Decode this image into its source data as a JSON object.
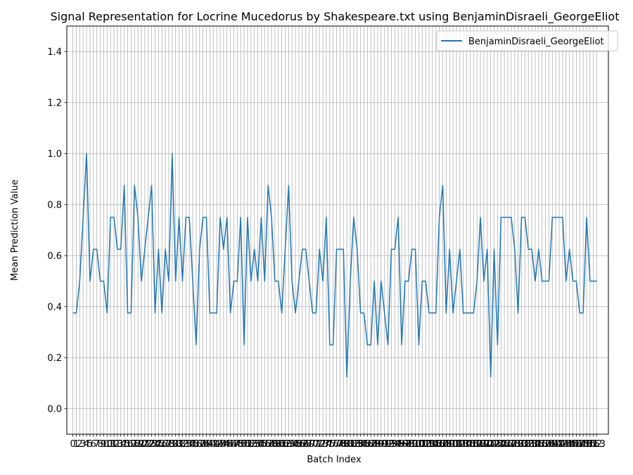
{
  "chart_data": {
    "type": "line",
    "title": "Signal Representation for Locrine Mucedorus by Shakespeare.txt using BenjaminDisraeli_GeorgeEliot",
    "xlabel": "Batch Index",
    "ylabel": "Mean Prediction Value",
    "ylim": [
      -0.1,
      1.5
    ],
    "yticks": [
      "0.0",
      "0.2",
      "0.4",
      "0.6",
      "0.8",
      "1.0",
      "1.2",
      "1.4"
    ],
    "grid": true,
    "legend_position": "top-right",
    "colors": {
      "series": "#1f77b4",
      "grid": "#b0b0b0"
    },
    "x": [
      0,
      1,
      2,
      3,
      4,
      5,
      6,
      7,
      8,
      9,
      10,
      11,
      12,
      13,
      14,
      15,
      16,
      17,
      18,
      19,
      20,
      21,
      22,
      23,
      24,
      25,
      26,
      27,
      28,
      29,
      30,
      31,
      32,
      33,
      34,
      35,
      36,
      37,
      38,
      39,
      40,
      41,
      42,
      43,
      44,
      45,
      46,
      47,
      48,
      49,
      50,
      51,
      52,
      53,
      54,
      55,
      56,
      57,
      58,
      59,
      60,
      61,
      62,
      63,
      64,
      65,
      66,
      67,
      68,
      69,
      70,
      71,
      72,
      73,
      74,
      75,
      76,
      77,
      78,
      79,
      80,
      81,
      82,
      83,
      84,
      85,
      86,
      87,
      88,
      89,
      90,
      91,
      92,
      93,
      94,
      95,
      96,
      97,
      98,
      99,
      100,
      101,
      102,
      103,
      104,
      105,
      106,
      107,
      108,
      109,
      110,
      111,
      112,
      113,
      114,
      115,
      116,
      117,
      118,
      119,
      120,
      121,
      122,
      123,
      124,
      125,
      126,
      127,
      128,
      129,
      130,
      131,
      132,
      133,
      134,
      135,
      136,
      137,
      138,
      139,
      140,
      141,
      142,
      143,
      144,
      145,
      146,
      147,
      148,
      149,
      150,
      151,
      152,
      153
    ],
    "series": [
      {
        "name": "BenjaminDisraeli_GeorgeEliot",
        "values": [
          0.375,
          0.375,
          0.5,
          0.75,
          1.0,
          0.5,
          0.625,
          0.625,
          0.5,
          0.5,
          0.375,
          0.75,
          0.75,
          0.625,
          0.625,
          0.875,
          0.375,
          0.375,
          0.875,
          0.75,
          0.5,
          0.625,
          0.75,
          0.875,
          0.375,
          0.625,
          0.375,
          0.625,
          0.5,
          1.0,
          0.5,
          0.75,
          0.5,
          0.75,
          0.75,
          0.5,
          0.25,
          0.625,
          0.75,
          0.75,
          0.375,
          0.375,
          0.375,
          0.75,
          0.625,
          0.75,
          0.375,
          0.5,
          0.5,
          0.75,
          0.25,
          0.75,
          0.5,
          0.625,
          0.5,
          0.75,
          0.5,
          0.875,
          0.75,
          0.5,
          0.5,
          0.375,
          0.625,
          0.875,
          0.5,
          0.375,
          0.5,
          0.625,
          0.625,
          0.5,
          0.375,
          0.375,
          0.625,
          0.5,
          0.75,
          0.25,
          0.25,
          0.625,
          0.625,
          0.625,
          0.125,
          0.5,
          0.75,
          0.625,
          0.375,
          0.375,
          0.25,
          0.25,
          0.5,
          0.25,
          0.5,
          0.375,
          0.25,
          0.625,
          0.625,
          0.75,
          0.25,
          0.5,
          0.5,
          0.625,
          0.625,
          0.25,
          0.5,
          0.5,
          0.375,
          0.375,
          0.375,
          0.75,
          0.875,
          0.375,
          0.625,
          0.375,
          0.5,
          0.625,
          0.375,
          0.375,
          0.375,
          0.375,
          0.5,
          0.75,
          0.5,
          0.625,
          0.125,
          0.625,
          0.25,
          0.75,
          0.75,
          0.75,
          0.75,
          0.625,
          0.375,
          0.75,
          0.75,
          0.625,
          0.625,
          0.5,
          0.625,
          0.5,
          0.5,
          0.5,
          0.75,
          0.75,
          0.75,
          0.75,
          0.5,
          0.625,
          0.5,
          0.5,
          0.375,
          0.375,
          0.75,
          0.5,
          0.5,
          0.5
        ]
      }
    ]
  }
}
